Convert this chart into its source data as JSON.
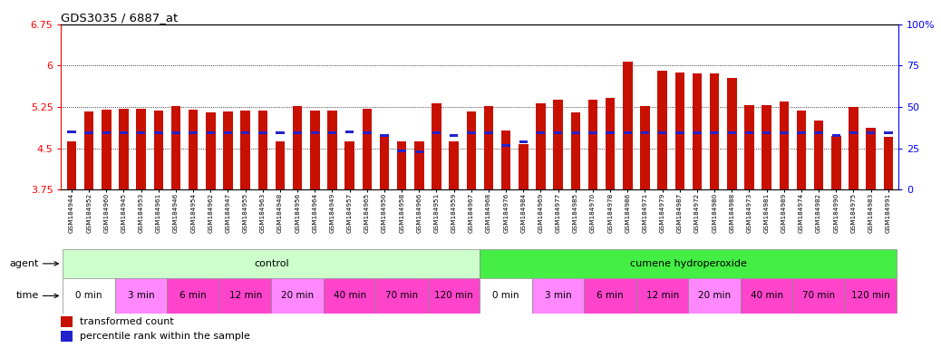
{
  "title": "GDS3035 / 6887_at",
  "y_min": 3.75,
  "y_max": 6.75,
  "y_ticks": [
    3.75,
    4.5,
    5.25,
    6,
    6.75
  ],
  "y_right_ticks": [
    0,
    25,
    50,
    75,
    100
  ],
  "samples": [
    "GSM184944",
    "GSM184952",
    "GSM184960",
    "GSM184945",
    "GSM184953",
    "GSM184961",
    "GSM184946",
    "GSM184954",
    "GSM184962",
    "GSM184947",
    "GSM184955",
    "GSM184963",
    "GSM184948",
    "GSM184956",
    "GSM184964",
    "GSM184949",
    "GSM184957",
    "GSM184965",
    "GSM184950",
    "GSM184958",
    "GSM184966",
    "GSM184951",
    "GSM184959",
    "GSM184967",
    "GSM184968",
    "GSM184976",
    "GSM184984",
    "GSM184969",
    "GSM184977",
    "GSM184985",
    "GSM184970",
    "GSM184978",
    "GSM184986",
    "GSM184971",
    "GSM184979",
    "GSM184987",
    "GSM184972",
    "GSM184980",
    "GSM184988",
    "GSM184973",
    "GSM184981",
    "GSM184989",
    "GSM184974",
    "GSM184982",
    "GSM184990",
    "GSM184975",
    "GSM184983",
    "GSM184991"
  ],
  "bar_values": [
    4.63,
    5.17,
    5.21,
    5.22,
    5.22,
    5.19,
    5.26,
    5.21,
    5.16,
    5.17,
    5.19,
    5.18,
    4.63,
    5.26,
    5.18,
    5.19,
    4.63,
    5.22,
    4.73,
    4.63,
    4.63,
    5.32,
    4.63,
    5.17,
    5.26,
    4.82,
    4.57,
    5.32,
    5.38,
    5.16,
    5.38,
    5.42,
    6.07,
    5.27,
    5.91,
    5.87,
    5.86,
    5.86,
    5.78,
    5.29,
    5.28,
    5.35,
    5.19,
    5.0,
    4.73,
    5.25,
    4.87,
    4.71
  ],
  "percentile_values": [
    4.8,
    4.78,
    4.79,
    4.78,
    4.79,
    4.78,
    4.79,
    4.79,
    4.78,
    4.79,
    4.79,
    4.79,
    4.78,
    4.79,
    4.79,
    4.79,
    4.8,
    4.79,
    4.74,
    4.45,
    4.43,
    4.79,
    4.74,
    4.79,
    4.79,
    4.55,
    4.62,
    4.79,
    4.79,
    4.79,
    4.79,
    4.79,
    4.79,
    4.79,
    4.79,
    4.79,
    4.79,
    4.79,
    4.79,
    4.79,
    4.79,
    4.79,
    4.79,
    4.79,
    4.74,
    4.79,
    4.79,
    4.79
  ],
  "bar_color": "#C81000",
  "percentile_color": "#2222CC",
  "control_color": "#CCFFCC",
  "treatment_color": "#44EE44",
  "time_labels": [
    "0 min",
    "3 min",
    "6 min",
    "12 min",
    "20 min",
    "40 min",
    "70 min",
    "120 min"
  ],
  "time_colors": [
    "#FFFFFF",
    "#FF88FF",
    "#FF44CC",
    "#FF44CC",
    "#FF88FF",
    "#FF44CC",
    "#FF44CC",
    "#FF44CC"
  ],
  "control_samples_count": 24,
  "treatment_samples_count": 24,
  "agent_label": "agent",
  "time_label": "time",
  "legend_red": "transformed count",
  "legend_blue": "percentile rank within the sample",
  "bg_color": "#FFFFFF"
}
